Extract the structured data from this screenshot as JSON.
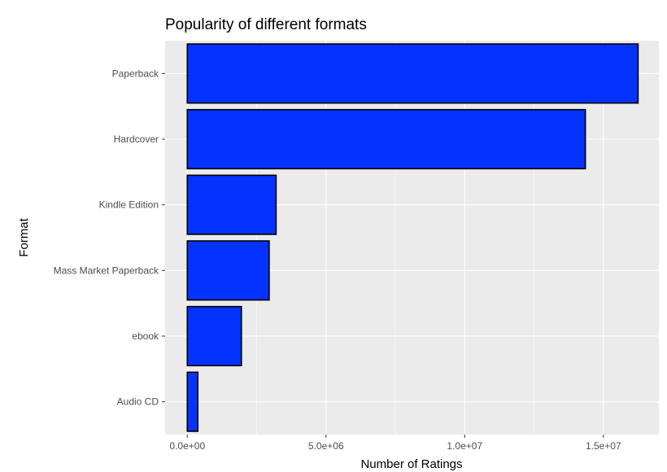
{
  "chart_data": {
    "type": "bar",
    "orientation": "horizontal",
    "title": "Popularity of different formats",
    "xlabel": "Number of Ratings",
    "ylabel": "Format",
    "categories": [
      "Paperback",
      "Hardcover",
      "Kindle Edition",
      "Mass Market Paperback",
      "ebook",
      "Audio CD"
    ],
    "values": [
      16250000,
      14350000,
      3200000,
      2950000,
      1950000,
      380000
    ],
    "xlim": [
      -800000,
      17000000
    ],
    "x_ticks": [
      0,
      5000000,
      10000000,
      15000000
    ],
    "x_tick_labels": [
      "0.0e+00",
      "5.0e+06",
      "1.0e+07",
      "1.5e+07"
    ],
    "grid": true,
    "legend": "none",
    "colors": {
      "bar_fill": "#0433ff",
      "bar_stroke": "#000000",
      "panel": "#ebebeb",
      "grid": "#ffffff"
    }
  }
}
